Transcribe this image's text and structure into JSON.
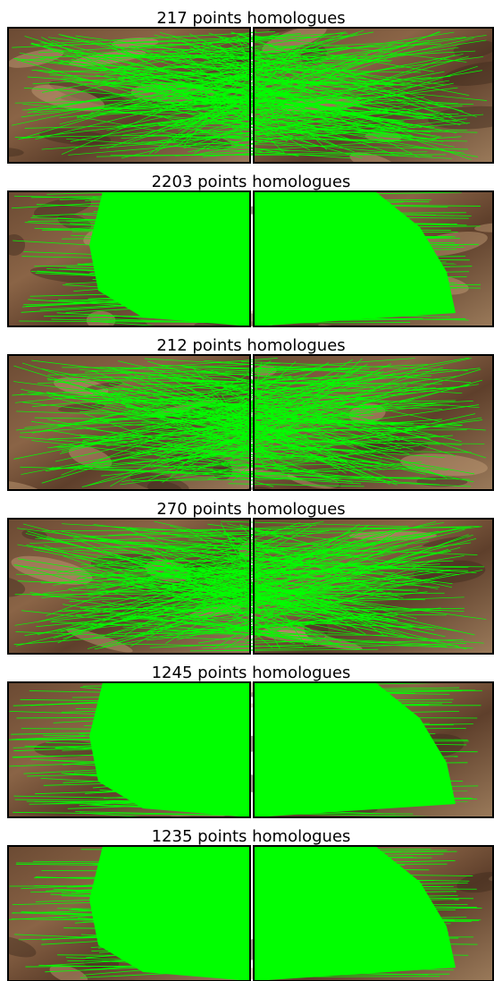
{
  "panels": [
    {
      "title": "217 points homologues"
    },
    {
      "title": "2203 points homologues"
    },
    {
      "title": "212 points homologues"
    },
    {
      "title": "270 points homologues"
    },
    {
      "title": "1245 points homologues"
    },
    {
      "title": "1235 points homologues"
    }
  ]
}
